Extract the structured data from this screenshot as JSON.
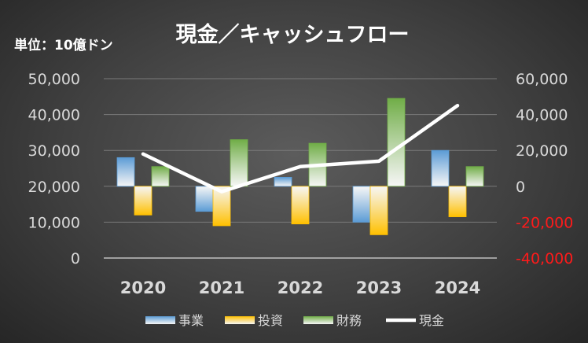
{
  "chart_data": {
    "type": "bar",
    "title": "現金／キャッシュフロー",
    "unit_label": "単位：10億ドン",
    "categories": [
      "2020",
      "2021",
      "2022",
      "2023",
      "2024"
    ],
    "series": [
      {
        "name": "事業",
        "type": "bar",
        "axis": "right",
        "color": "#5b9bd5",
        "values": [
          16000,
          -14000,
          5000,
          -20000,
          20000
        ]
      },
      {
        "name": "投資",
        "type": "bar",
        "axis": "right",
        "color": "#ffc000",
        "values": [
          -16000,
          -22000,
          -21000,
          -27000,
          -17000
        ]
      },
      {
        "name": "財務",
        "type": "bar",
        "axis": "right",
        "color": "#70ad47",
        "values": [
          11000,
          26000,
          24000,
          49000,
          11000
        ]
      },
      {
        "name": "現金",
        "type": "line",
        "axis": "left",
        "color": "#ffffff",
        "values": [
          29000,
          18500,
          25500,
          27000,
          42500
        ]
      }
    ],
    "y_left": {
      "min": 0,
      "max": 50000,
      "ticks": [
        "50,000",
        "40,000",
        "30,000",
        "20,000",
        "10,000",
        "0"
      ],
      "tick_values": [
        50000,
        40000,
        30000,
        20000,
        10000,
        0
      ]
    },
    "y_right": {
      "min": -40000,
      "max": 60000,
      "ticks": [
        "60,000",
        "40,000",
        "20,000",
        "0",
        "-20,000",
        "-40,000"
      ],
      "tick_values": [
        60000,
        40000,
        20000,
        0,
        -20000,
        -40000
      ],
      "negative_color": "#ff1a1a"
    },
    "legend_position": "bottom",
    "grid": true
  }
}
